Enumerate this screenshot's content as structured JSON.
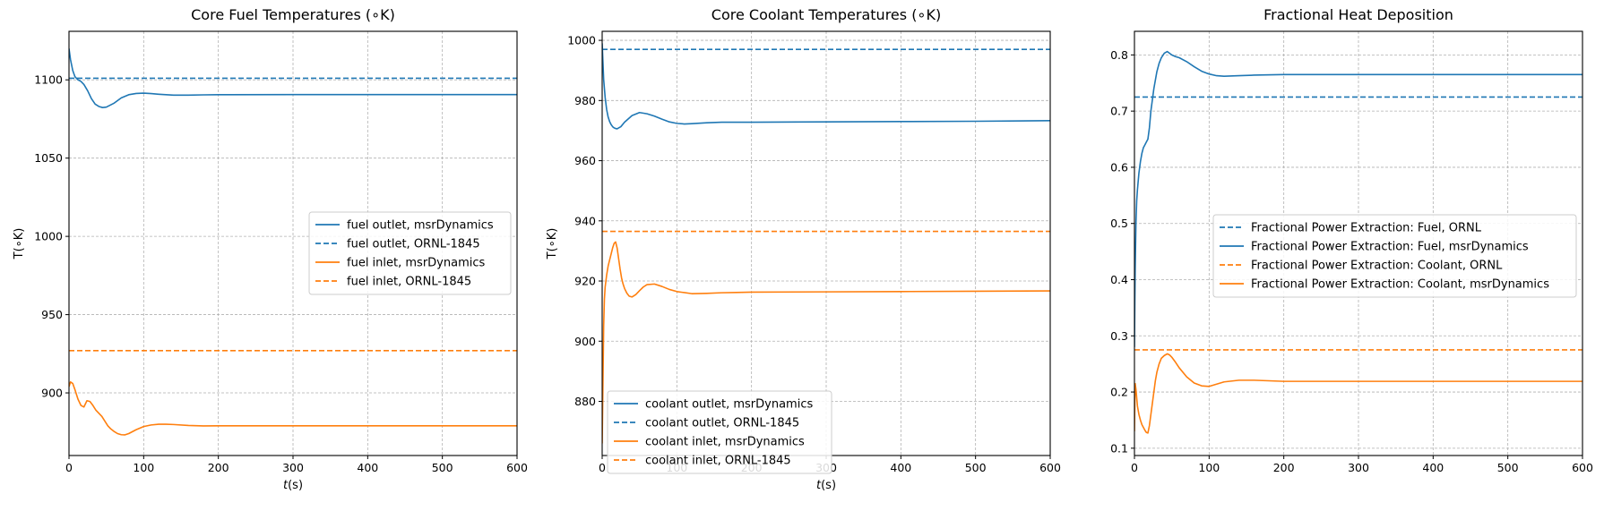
{
  "colors": {
    "blue": "#1f77b4",
    "orange": "#ff7f0e"
  },
  "chart_data": [
    {
      "type": "line",
      "title": "Core Fuel Temperatures ($^\\circ$K)",
      "title_display": "Core Fuel Temperatures (∘K)",
      "xlabel": "t(s)",
      "ylabel": "T(∘K)",
      "xlim": [
        0,
        600
      ],
      "ylim": [
        860,
        1131
      ],
      "xticks": [
        0,
        100,
        200,
        300,
        400,
        500,
        600
      ],
      "yticks": [
        900,
        950,
        1000,
        1050,
        1100
      ],
      "grid": true,
      "legend_position": "center-right",
      "series": [
        {
          "name": "fuel outlet, msrDynamics",
          "color": "#1f77b4",
          "style": "solid",
          "x": [
            0,
            2,
            5,
            8,
            12,
            16,
            20,
            25,
            30,
            35,
            40,
            45,
            50,
            60,
            70,
            80,
            90,
            100,
            110,
            120,
            140,
            160,
            180,
            200,
            300,
            400,
            500,
            600
          ],
          "y": [
            1120,
            1113,
            1106,
            1102,
            1100,
            1099,
            1097,
            1093,
            1088,
            1084.5,
            1083,
            1082.3,
            1082.6,
            1085,
            1088.5,
            1090.5,
            1091.3,
            1091.5,
            1091.2,
            1090.8,
            1090.2,
            1090.2,
            1090.4,
            1090.5,
            1090.6,
            1090.6,
            1090.6,
            1090.6
          ]
        },
        {
          "name": "fuel outlet, ORNL-1845",
          "color": "#1f77b4",
          "style": "dashed",
          "x": [
            0,
            600
          ],
          "y": [
            1101,
            1101
          ]
        },
        {
          "name": "fuel inlet, msrDynamics",
          "color": "#ff7f0e",
          "style": "solid",
          "x": [
            0,
            2,
            5,
            8,
            12,
            16,
            20,
            24,
            28,
            32,
            36,
            40,
            44,
            48,
            52,
            56,
            60,
            65,
            70,
            75,
            80,
            90,
            100,
            110,
            120,
            130,
            140,
            160,
            180,
            200,
            300,
            400,
            500,
            600
          ],
          "y": [
            904,
            907,
            906,
            902,
            896,
            892,
            891,
            895,
            894.5,
            892,
            889,
            887,
            885,
            882,
            879,
            877,
            875.5,
            874,
            873.3,
            873.2,
            874,
            876.5,
            878.5,
            879.5,
            880,
            880,
            879.8,
            879.2,
            878.9,
            879,
            879,
            879,
            879,
            879
          ]
        },
        {
          "name": "fuel inlet, ORNL-1845",
          "color": "#ff7f0e",
          "style": "dashed",
          "x": [
            0,
            600
          ],
          "y": [
            927,
            927
          ]
        }
      ]
    },
    {
      "type": "line",
      "title": "Core Coolant Temperatures ($^\\circ$K)",
      "title_display": "Core Coolant Temperatures (∘K)",
      "xlabel": "t(s)",
      "ylabel": "T(∘K)",
      "xlim": [
        0,
        600
      ],
      "ylim": [
        862,
        1003
      ],
      "xticks": [
        0,
        100,
        200,
        300,
        400,
        500,
        600
      ],
      "yticks": [
        880,
        900,
        920,
        940,
        960,
        980,
        1000
      ],
      "grid": true,
      "legend_position": "lower-left",
      "series": [
        {
          "name": "coolant outlet, msrDynamics",
          "color": "#1f77b4",
          "style": "solid",
          "x": [
            0,
            1,
            2,
            4,
            6,
            8,
            10,
            12,
            14,
            16,
            18,
            20,
            25,
            30,
            40,
            50,
            60,
            70,
            80,
            90,
            100,
            110,
            120,
            140,
            160,
            180,
            200,
            300,
            400,
            500,
            600
          ],
          "y": [
            999,
            993,
            987,
            981,
            977,
            974.5,
            973,
            972,
            971.3,
            970.9,
            970.7,
            970.6,
            971.3,
            972.8,
            975,
            976,
            975.6,
            974.8,
            973.8,
            972.9,
            972.4,
            972.2,
            972.3,
            972.6,
            972.8,
            972.8,
            972.8,
            972.9,
            973,
            973.1,
            973.3
          ]
        },
        {
          "name": "coolant outlet, ORNL-1845",
          "color": "#1f77b4",
          "style": "dashed",
          "x": [
            0,
            600
          ],
          "y": [
            997,
            997
          ]
        },
        {
          "name": "coolant inlet, msrDynamics",
          "color": "#ff7f0e",
          "style": "solid",
          "x": [
            0,
            1,
            2,
            3,
            4,
            6,
            8,
            10,
            12,
            14,
            16,
            18,
            20,
            22,
            24,
            26,
            28,
            30,
            33,
            36,
            40,
            45,
            50,
            55,
            60,
            70,
            80,
            90,
            100,
            120,
            140,
            160,
            180,
            200,
            300,
            400,
            500,
            600
          ],
          "y": [
            866,
            885,
            905,
            914,
            918,
            922,
            925,
            927,
            929,
            931,
            932.5,
            933,
            931,
            927.5,
            924,
            921,
            919,
            917.5,
            916,
            915,
            914.7,
            915.5,
            916.8,
            918,
            918.8,
            919,
            918.2,
            917.2,
            916.5,
            915.8,
            915.9,
            916.1,
            916.2,
            916.3,
            916.4,
            916.5,
            916.6,
            916.7
          ]
        },
        {
          "name": "coolant inlet, ORNL-1845",
          "color": "#ff7f0e",
          "style": "dashed",
          "x": [
            0,
            600
          ],
          "y": [
            936.5,
            936.5
          ]
        }
      ]
    },
    {
      "type": "line",
      "title": "Fractional Heat Deposition",
      "title_display": "Fractional Heat Deposition",
      "xlabel": "",
      "ylabel": "",
      "xlim": [
        0,
        600
      ],
      "ylim": [
        0.087,
        0.842
      ],
      "xticks": [
        0,
        100,
        200,
        300,
        400,
        500,
        600
      ],
      "yticks": [
        0.1,
        0.2,
        0.3,
        0.4,
        0.5,
        0.6,
        0.7,
        0.8
      ],
      "grid": true,
      "legend_position": "center-right",
      "series": [
        {
          "name": "Fractional Power Extraction: Fuel, ORNL",
          "color": "#1f77b4",
          "style": "dashed",
          "x": [
            0,
            600
          ],
          "y": [
            0.725,
            0.725
          ]
        },
        {
          "name": "Fractional Power Extraction: Fuel, msrDynamics",
          "color": "#1f77b4",
          "style": "solid",
          "x": [
            0,
            0.5,
            1,
            2,
            3,
            4,
            6,
            8,
            10,
            12,
            14,
            16,
            18,
            20,
            22,
            24,
            26,
            28,
            30,
            33,
            36,
            40,
            44,
            47,
            50,
            55,
            60,
            70,
            80,
            90,
            100,
            110,
            120,
            140,
            160,
            200,
            300,
            400,
            500,
            600
          ],
          "y": [
            0.28,
            0.36,
            0.42,
            0.5,
            0.54,
            0.56,
            0.59,
            0.61,
            0.625,
            0.635,
            0.64,
            0.645,
            0.65,
            0.67,
            0.7,
            0.72,
            0.74,
            0.755,
            0.77,
            0.785,
            0.795,
            0.803,
            0.806,
            0.803,
            0.8,
            0.797,
            0.795,
            0.788,
            0.779,
            0.771,
            0.766,
            0.763,
            0.762,
            0.763,
            0.764,
            0.765,
            0.765,
            0.765,
            0.765,
            0.765
          ]
        },
        {
          "name": "Fractional Power Extraction: Coolant, ORNL",
          "color": "#ff7f0e",
          "style": "dashed",
          "x": [
            0,
            600
          ],
          "y": [
            0.275,
            0.275
          ]
        },
        {
          "name": "Fractional Power Extraction: Coolant, msrDynamics",
          "color": "#ff7f0e",
          "style": "solid",
          "x": [
            0,
            0.5,
            1,
            2,
            3,
            4,
            6,
            8,
            10,
            12,
            14,
            16,
            18,
            20,
            22,
            24,
            26,
            28,
            30,
            33,
            36,
            40,
            44,
            47,
            50,
            55,
            60,
            70,
            80,
            90,
            100,
            110,
            120,
            140,
            160,
            200,
            300,
            400,
            500,
            600
          ],
          "y": [
            0.13,
            0.18,
            0.215,
            0.205,
            0.19,
            0.175,
            0.16,
            0.15,
            0.142,
            0.137,
            0.132,
            0.128,
            0.127,
            0.14,
            0.16,
            0.18,
            0.2,
            0.22,
            0.235,
            0.25,
            0.26,
            0.265,
            0.268,
            0.266,
            0.262,
            0.253,
            0.243,
            0.227,
            0.216,
            0.211,
            0.21,
            0.214,
            0.218,
            0.221,
            0.221,
            0.219,
            0.219,
            0.219,
            0.219,
            0.219
          ]
        }
      ]
    }
  ]
}
